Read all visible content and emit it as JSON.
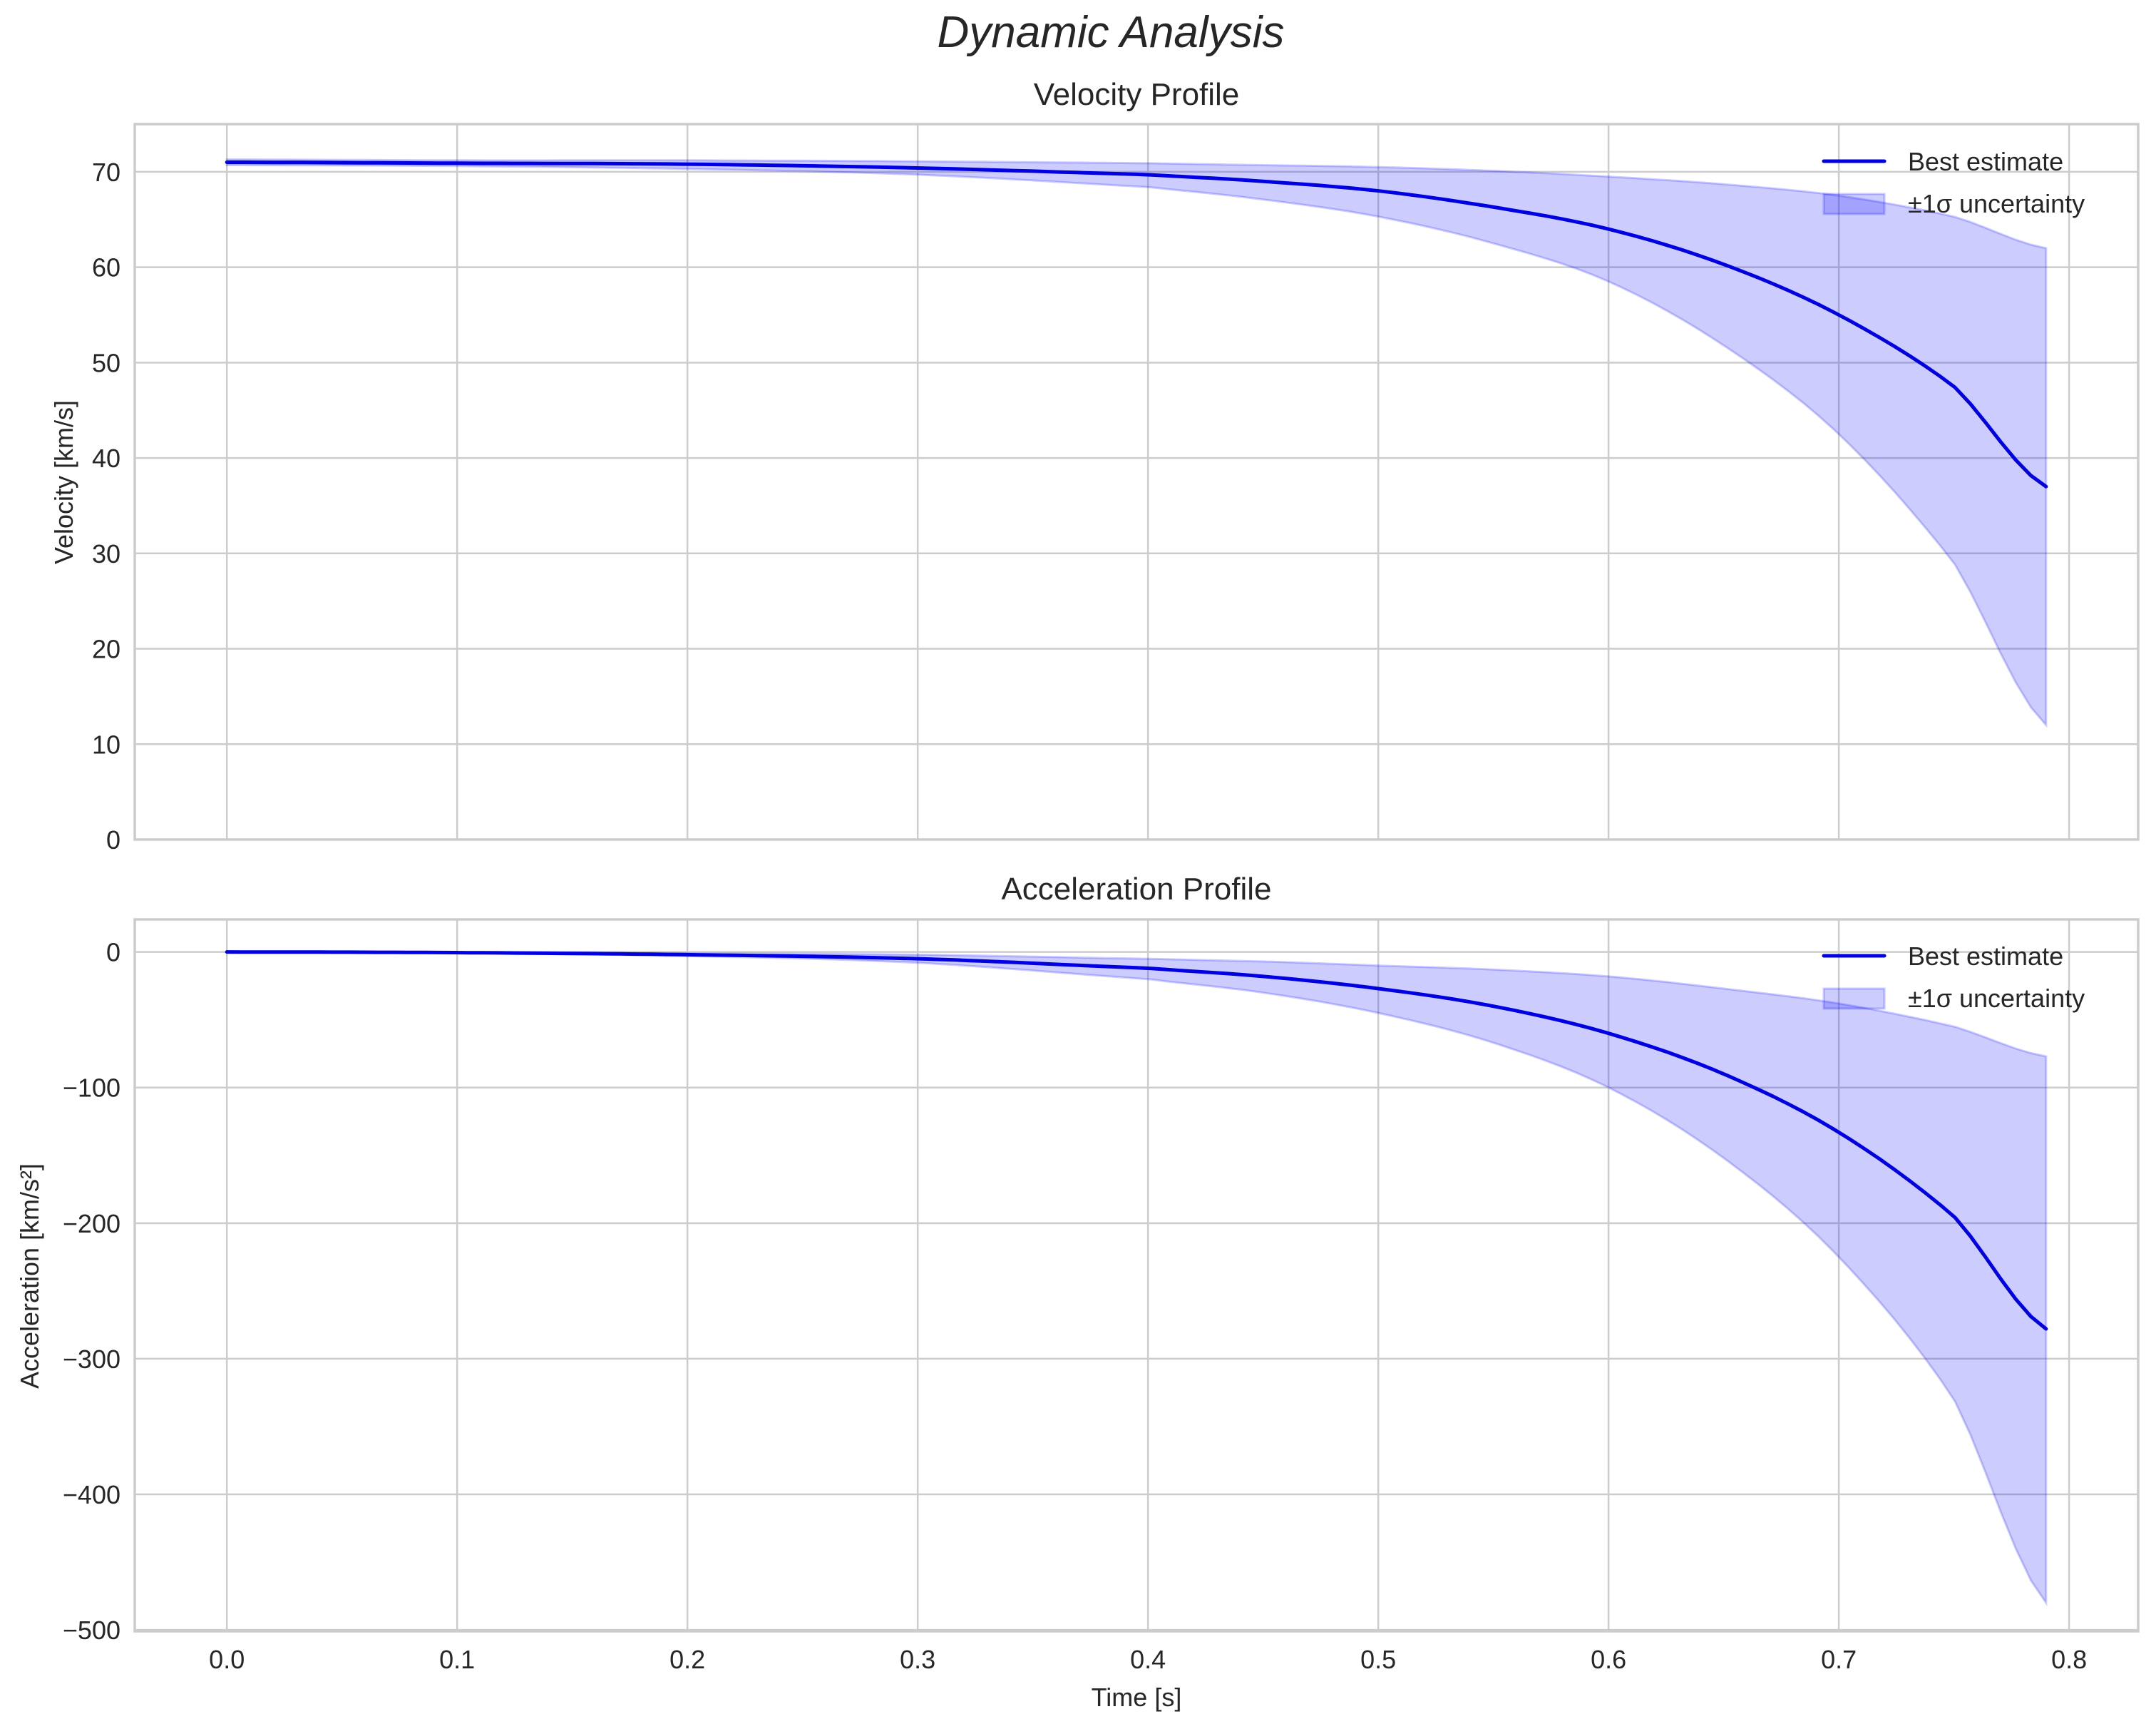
{
  "figure": {
    "suptitle": "Dynamic Analysis",
    "background": "#ffffff",
    "line_color": "#0000e0",
    "band_color": "#0000ff",
    "band_alpha": 0.2
  },
  "panels": [
    {
      "title": "Velocity Profile",
      "ylabel": "Velocity [km/s]",
      "xlabel": "",
      "yticks": [
        0,
        10,
        20,
        30,
        40,
        50,
        60,
        70
      ],
      "ytick_labels": [
        "0",
        "10",
        "20",
        "30",
        "40",
        "50",
        "60",
        "70"
      ],
      "xtick_labels_visible": false,
      "legend": [
        {
          "label": "Best estimate",
          "kind": "line"
        },
        {
          "label": "±1σ uncertainty",
          "kind": "patch"
        }
      ]
    },
    {
      "title": "Acceleration Profile",
      "ylabel": "Acceleration [km/s²]",
      "xlabel": "Time [s]",
      "yticks": [
        0,
        -100,
        -200,
        -300,
        -400,
        -500
      ],
      "ytick_labels": [
        "0",
        "−100",
        "−200",
        "−300",
        "−400",
        "−500"
      ],
      "xtick_labels_visible": true,
      "legend": [
        {
          "label": "Best estimate",
          "kind": "line"
        },
        {
          "label": "±1σ uncertainty",
          "kind": "patch"
        }
      ]
    }
  ],
  "xticks": [
    0.0,
    0.1,
    0.2,
    0.3,
    0.4,
    0.5,
    0.6,
    0.7,
    0.8
  ],
  "xtick_labels": [
    "0.0",
    "0.1",
    "0.2",
    "0.3",
    "0.4",
    "0.5",
    "0.6",
    "0.7",
    "0.8"
  ],
  "chart_data": [
    {
      "type": "line",
      "title": "Velocity Profile",
      "suptitle": "Dynamic Analysis",
      "xlabel": "",
      "ylabel": "Velocity [km/s]",
      "xlim": [
        -0.04,
        0.83
      ],
      "ylim": [
        0,
        75
      ],
      "grid": true,
      "legend_position": "upper right",
      "x": [
        0.0,
        0.1,
        0.2,
        0.3,
        0.4,
        0.45,
        0.5,
        0.55,
        0.6,
        0.65,
        0.7,
        0.75,
        0.79
      ],
      "series": [
        {
          "name": "Best estimate",
          "values": [
            71.0,
            70.9,
            70.8,
            70.4,
            69.7,
            69.0,
            68.0,
            66.3,
            64.0,
            60.3,
            55.0,
            47.5,
            37.0
          ]
        },
        {
          "name": "±1σ uncertainty (lower)",
          "values": [
            70.7,
            70.6,
            70.3,
            69.7,
            68.4,
            67.1,
            65.3,
            62.5,
            58.5,
            51.8,
            42.5,
            29.0,
            12.0
          ]
        },
        {
          "name": "±1σ uncertainty (upper)",
          "values": [
            71.3,
            71.2,
            71.2,
            71.1,
            70.9,
            70.7,
            70.5,
            70.1,
            69.5,
            68.7,
            67.5,
            65.3,
            62.0
          ]
        }
      ]
    },
    {
      "type": "line",
      "title": "Acceleration Profile",
      "xlabel": "Time [s]",
      "ylabel": "Acceleration [km/s²]",
      "xlim": [
        -0.04,
        0.83
      ],
      "ylim": [
        -501,
        24
      ],
      "grid": true,
      "legend_position": "upper right",
      "x": [
        0.0,
        0.1,
        0.2,
        0.3,
        0.4,
        0.45,
        0.5,
        0.55,
        0.6,
        0.65,
        0.7,
        0.75,
        0.79
      ],
      "series": [
        {
          "name": "Best estimate",
          "values": [
            0,
            -0.5,
            -2,
            -5,
            -12,
            -18,
            -27,
            -40,
            -60,
            -90,
            -133,
            -195,
            -278
          ]
        },
        {
          "name": "±1σ uncertainty (lower)",
          "values": [
            0,
            -0.8,
            -3,
            -8,
            -20,
            -30,
            -45,
            -67,
            -100,
            -152,
            -225,
            -330,
            -480
          ]
        },
        {
          "name": "±1σ uncertainty (upper)",
          "values": [
            0,
            -0.2,
            -1,
            -2,
            -5,
            -7,
            -10,
            -13,
            -18,
            -27,
            -38,
            -55,
            -77
          ]
        }
      ]
    }
  ]
}
